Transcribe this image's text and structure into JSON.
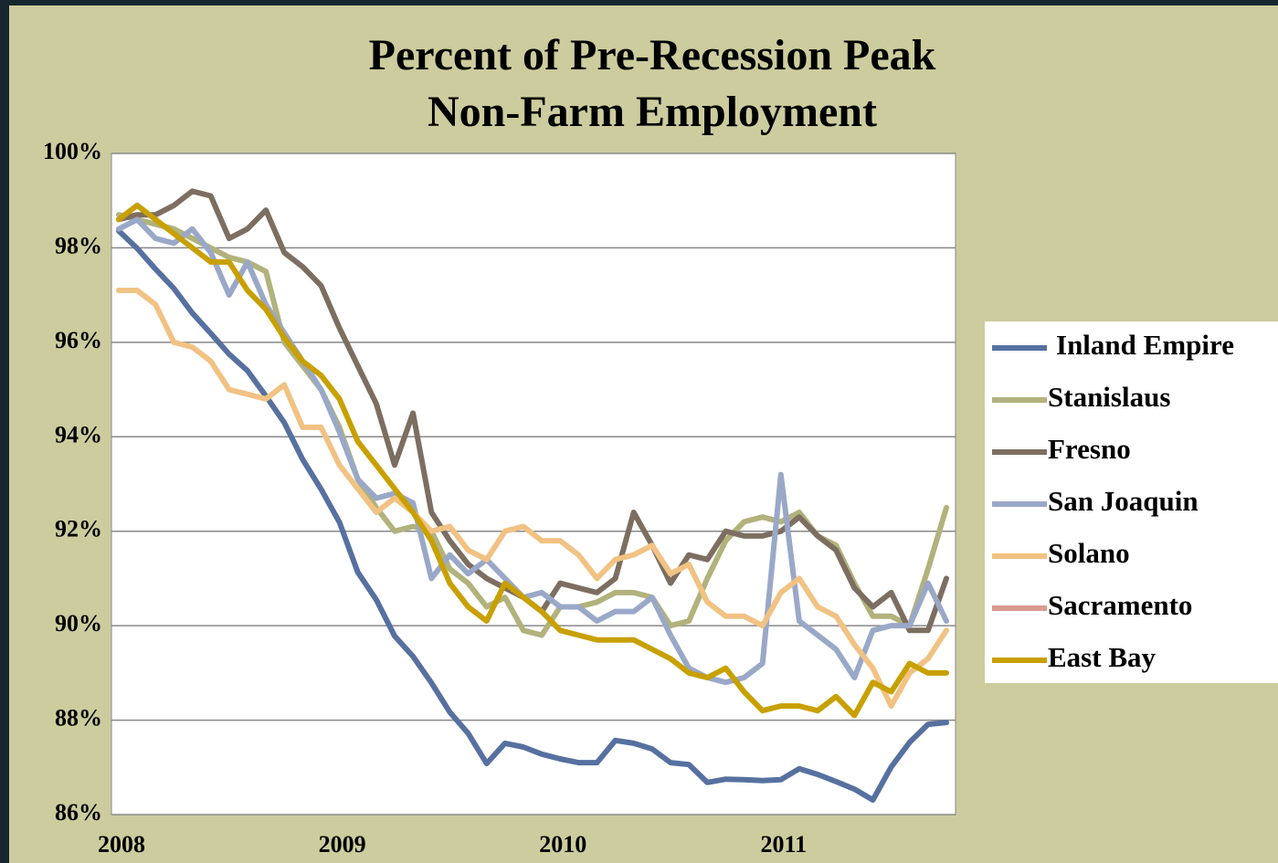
{
  "chart_data": {
    "type": "line",
    "title": [
      "Percent of Pre-Recession Peak",
      "Non-Farm Employment"
    ],
    "categories": [
      "2008",
      null,
      null,
      null,
      null,
      null,
      null,
      null,
      null,
      null,
      null,
      null,
      "2009",
      null,
      null,
      null,
      null,
      null,
      null,
      null,
      null,
      null,
      null,
      null,
      "2010",
      null,
      null,
      null,
      null,
      null,
      null,
      null,
      null,
      null,
      null,
      null,
      "2011",
      null,
      null,
      null,
      null,
      null,
      null,
      null,
      null,
      null
    ],
    "ylim": [
      86,
      100
    ],
    "yticks": [
      {
        "value": 86,
        "label": "86%"
      },
      {
        "value": 88,
        "label": "88%"
      },
      {
        "value": 90,
        "label": "90%"
      },
      {
        "value": 92,
        "label": "92%"
      },
      {
        "value": 94,
        "label": "94%"
      },
      {
        "value": 96,
        "label": "96%"
      },
      {
        "value": 98,
        "label": "98%"
      },
      {
        "value": 100,
        "label": "100%"
      }
    ],
    "grid": true,
    "legend": "right",
    "series": [
      {
        "name": "Inland Empire",
        "color": "#5670a0",
        "values": [
          98.36,
          97.99,
          97.55,
          97.14,
          96.62,
          96.19,
          95.75,
          95.4,
          94.86,
          94.3,
          93.52,
          92.89,
          92.19,
          91.13,
          90.55,
          89.78,
          89.35,
          88.79,
          88.17,
          87.72,
          87.08,
          87.51,
          87.43,
          87.28,
          87.18,
          87.1,
          87.1,
          87.57,
          87.51,
          87.39,
          87.1,
          87.06,
          86.68,
          86.75,
          86.74,
          86.72,
          86.74,
          86.97,
          86.85,
          86.7,
          86.54,
          86.31,
          87.01,
          87.53,
          87.91,
          87.95
        ]
      },
      {
        "name": "Stanislaus",
        "color": "#b1b27c",
        "values": [
          98.7,
          98.6,
          98.5,
          98.4,
          98.2,
          98.0,
          97.8,
          97.7,
          97.5,
          96.0,
          95.5,
          95.0,
          94.2,
          93.1,
          92.5,
          92.0,
          92.1,
          92.0,
          91.2,
          90.9,
          90.4,
          90.6,
          89.9,
          89.8,
          90.4,
          90.4,
          90.5,
          90.7,
          90.7,
          90.6,
          90.0,
          90.1,
          91.0,
          91.8,
          92.2,
          92.3,
          92.2,
          92.4,
          91.9,
          91.7,
          90.9,
          90.2,
          90.2,
          90.0,
          91.2,
          92.5
        ]
      },
      {
        "name": "Fresno",
        "color": "#7c6e60",
        "values": [
          98.6,
          98.7,
          98.7,
          98.9,
          99.2,
          99.1,
          98.2,
          98.4,
          98.8,
          97.9,
          97.6,
          97.2,
          96.3,
          95.5,
          94.7,
          93.4,
          94.5,
          92.4,
          91.8,
          91.3,
          91.0,
          90.8,
          90.6,
          90.3,
          90.9,
          90.8,
          90.7,
          91.0,
          92.4,
          91.7,
          90.9,
          91.5,
          91.4,
          92.0,
          91.9,
          91.9,
          92.0,
          92.3,
          91.9,
          91.6,
          90.8,
          90.4,
          90.7,
          89.9,
          89.9,
          91.0
        ]
      },
      {
        "name": "San Joaquin",
        "color": "#9aa8c8",
        "values": [
          98.4,
          98.6,
          98.2,
          98.1,
          98.4,
          97.9,
          97.0,
          97.7,
          96.8,
          96.2,
          95.6,
          95.0,
          94.1,
          93.1,
          92.7,
          92.8,
          92.6,
          91.0,
          91.5,
          91.1,
          91.4,
          91.0,
          90.6,
          90.7,
          90.4,
          90.4,
          90.1,
          90.3,
          90.3,
          90.6,
          89.8,
          89.1,
          88.9,
          88.8,
          88.9,
          89.2,
          93.2,
          90.1,
          89.8,
          89.5,
          88.9,
          89.9,
          90.0,
          90.0,
          90.9,
          90.1
        ]
      },
      {
        "name": "Solano",
        "color": "#f1c283",
        "values": [
          97.1,
          97.1,
          96.8,
          96.0,
          95.9,
          95.6,
          95.0,
          94.9,
          94.8,
          95.1,
          94.2,
          94.2,
          93.4,
          92.9,
          92.4,
          92.7,
          92.4,
          92.0,
          92.1,
          91.6,
          91.4,
          92.0,
          92.1,
          91.8,
          91.8,
          91.5,
          91.0,
          91.4,
          91.5,
          91.7,
          91.1,
          91.3,
          90.5,
          90.2,
          90.2,
          90.0,
          90.7,
          91.0,
          90.4,
          90.2,
          89.6,
          89.1,
          88.3,
          89.0,
          89.3,
          89.9
        ]
      },
      {
        "name": "Sacramento",
        "color": "#d99a90",
        "values": [
          null,
          null,
          null,
          null,
          null,
          null,
          null,
          null,
          null,
          null,
          null,
          null,
          null,
          null,
          null,
          null,
          null,
          null,
          null,
          null,
          null,
          null,
          null,
          null,
          null,
          null,
          null,
          null,
          null,
          null,
          null,
          null,
          null,
          null,
          null,
          null,
          null,
          null,
          null,
          null,
          null,
          null,
          null,
          null,
          null,
          null
        ]
      },
      {
        "name": "East Bay",
        "color": "#c8a000",
        "values": [
          98.6,
          98.9,
          98.6,
          98.3,
          98.0,
          97.7,
          97.7,
          97.1,
          96.7,
          96.1,
          95.6,
          95.3,
          94.8,
          93.9,
          93.4,
          92.9,
          92.4,
          91.8,
          90.9,
          90.4,
          90.1,
          90.9,
          90.6,
          90.3,
          89.9,
          89.8,
          89.7,
          89.7,
          89.7,
          89.5,
          89.3,
          89.0,
          88.9,
          89.1,
          88.6,
          88.2,
          88.3,
          88.3,
          88.2,
          88.5,
          88.1,
          88.8,
          88.6,
          89.2,
          89.0,
          89.0
        ]
      }
    ]
  }
}
